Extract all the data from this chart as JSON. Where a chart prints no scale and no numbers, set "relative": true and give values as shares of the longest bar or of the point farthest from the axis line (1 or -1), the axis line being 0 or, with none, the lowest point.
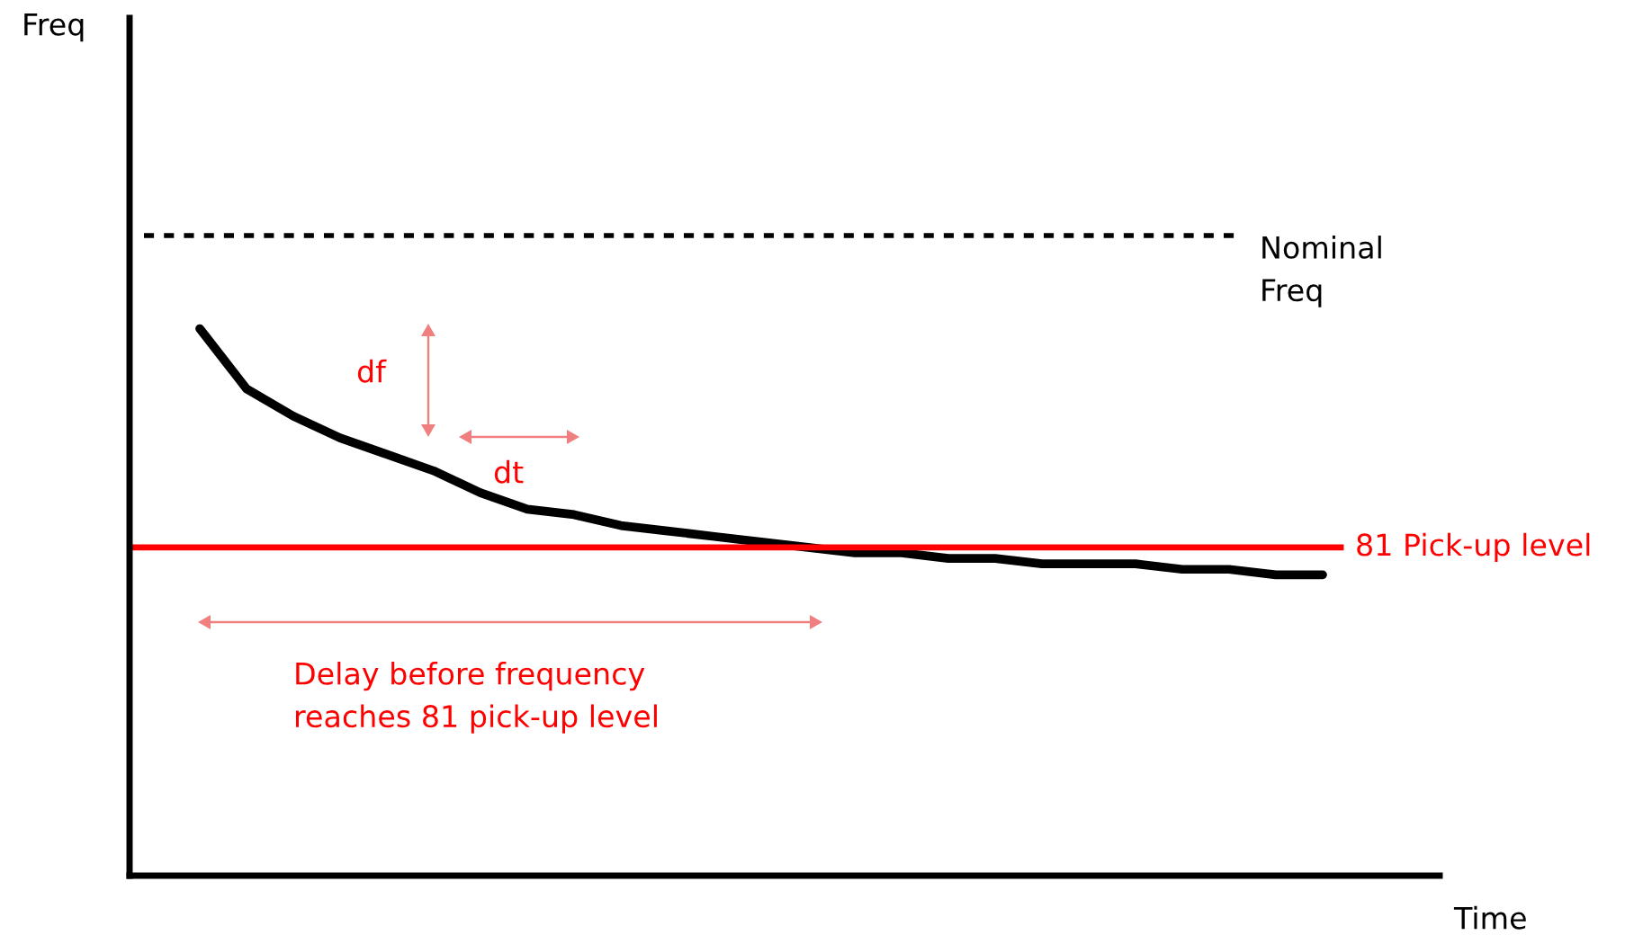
{
  "chart_data": {
    "type": "line",
    "relative": true,
    "xlabel": "Time",
    "categories": [
      null,
      null,
      null,
      null,
      null,
      null,
      null,
      null,
      null,
      null,
      null,
      null,
      null,
      null,
      null,
      null,
      null,
      null,
      null,
      null,
      null,
      null,
      null,
      null,
      null,
      null,
      null,
      null
    ],
    "series": [
      {
        "color": "#000000",
        "values": [
          null,
          1,
          0.89,
          0.84,
          0.8,
          0.77,
          0.74,
          0.7,
          0.67,
          0.66,
          0.64,
          0.63,
          0.62,
          0.61,
          0.6,
          0.59,
          0.59,
          0.58,
          0.58,
          0.57,
          0.57,
          0.57,
          0.56,
          0.56,
          0.55,
          0.55,
          null,
          null
        ]
      }
    ],
    "ref_lines": [
      {
        "axis": "y",
        "value": 1.17,
        "label": "Nominal\nFreq",
        "color": "#000000",
        "line_style": "dotted"
      },
      {
        "axis": "y",
        "value": 0.6,
        "label": "81 Pick-up level",
        "color": "#ff0000",
        "line_style": "solid"
      }
    ],
    "annotations": [
      "Freq",
      "df",
      "dt",
      "Delay before frequency\nreaches 81 pick-up level"
    ],
    "grid": false,
    "legend": false,
    "marker": "none",
    "line_style": "solid"
  }
}
